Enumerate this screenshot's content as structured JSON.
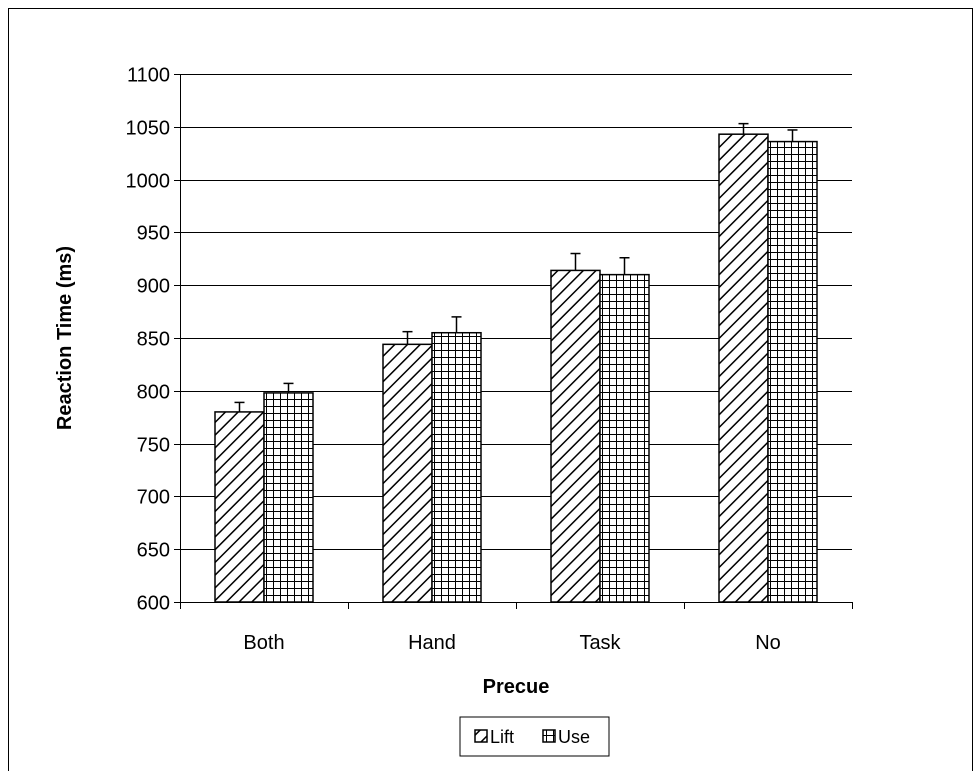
{
  "chart_data": {
    "type": "bar",
    "title": "",
    "xlabel": "Precue",
    "ylabel": "Reaction Time (ms)",
    "categories": [
      "Both",
      "Hand",
      "Task",
      "No"
    ],
    "series": [
      {
        "name": "Lift",
        "values": [
          780,
          844,
          914,
          1043
        ],
        "errors": [
          9,
          12,
          16,
          10
        ],
        "pattern": "diagonal-hatch"
      },
      {
        "name": "Use",
        "values": [
          798,
          855,
          910,
          1036
        ],
        "errors": [
          9,
          15,
          16,
          11
        ],
        "pattern": "grid-hatch"
      }
    ],
    "ylim": [
      600,
      1100
    ],
    "yticks": [
      "600",
      "650",
      "700",
      "750",
      "800",
      "850",
      "900",
      "950",
      "1000",
      "1050",
      "1100"
    ],
    "grid": true,
    "legend": "bottom-center",
    "colors": {
      "bar_fill": "#ffffff",
      "bar_stroke": "#000000",
      "grid": "#000000"
    }
  }
}
